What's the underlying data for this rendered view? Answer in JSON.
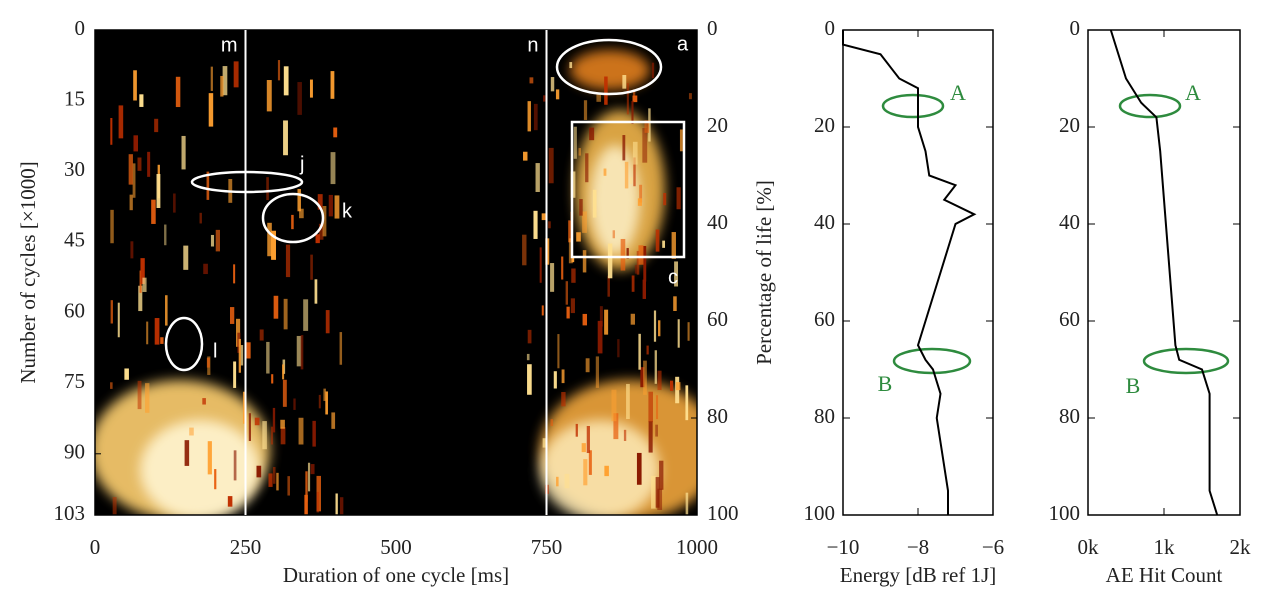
{
  "chart_data": [
    {
      "type": "heatmap",
      "xlabel": "Duration of one cycle [ms]",
      "ylabel": "Number of cycles [×1000]",
      "y2label": "Percentage of life [%]",
      "xlim": [
        0,
        1000
      ],
      "xticks": [
        0,
        250,
        500,
        750,
        1000
      ],
      "ylim": [
        0,
        103
      ],
      "yticks": [
        0,
        15,
        30,
        45,
        60,
        75,
        90,
        103
      ],
      "y2lim": [
        0,
        100
      ],
      "y2ticks": [
        0,
        20,
        40,
        60,
        80,
        100
      ],
      "vlines": [
        {
          "value": 250,
          "label": "m"
        },
        {
          "value": 750,
          "label": "n"
        }
      ],
      "annotations": [
        "a",
        "c",
        "j",
        "k",
        "l"
      ]
    },
    {
      "type": "line",
      "xlabel": "Energy [dB ref 1J]",
      "ylabel": "Percentage of life [%]",
      "xlim": [
        -10,
        -6
      ],
      "xticks": [
        {
          "value": -10,
          "label": "−10"
        },
        {
          "value": -8,
          "label": "−8"
        },
        {
          "value": -6,
          "label": "−6"
        }
      ],
      "ylim": [
        0,
        100
      ],
      "yticks": [
        0,
        20,
        40,
        60,
        80,
        100
      ],
      "x": [
        0,
        3,
        5,
        8,
        10,
        12,
        15,
        18,
        20,
        25,
        30,
        32,
        35,
        38,
        40,
        45,
        50,
        55,
        60,
        65,
        68,
        70,
        75,
        80,
        85,
        90,
        95,
        100
      ],
      "values": [
        -10,
        -10,
        -9,
        -8.7,
        -8.5,
        -8,
        -8,
        -8,
        -8,
        -7.8,
        -7.7,
        -7,
        -7.3,
        -6.5,
        -7,
        -7.2,
        -7.4,
        -7.6,
        -7.8,
        -8,
        -7.8,
        -7.6,
        -7.4,
        -7.5,
        -7.4,
        -7.3,
        -7.2,
        -7.2
      ],
      "color": "#000000",
      "annotations": [
        "A",
        "B"
      ]
    },
    {
      "type": "line",
      "xlabel": "AE Hit Count",
      "xlim": [
        0,
        2000
      ],
      "xticks": [
        {
          "value": 0,
          "label": "0k"
        },
        {
          "value": 1000,
          "label": "1k"
        },
        {
          "value": 2000,
          "label": "2k"
        }
      ],
      "ylim": [
        0,
        100
      ],
      "yticks": [
        0,
        20,
        40,
        60,
        80,
        100
      ],
      "x": [
        0,
        5,
        10,
        15,
        18,
        25,
        35,
        45,
        55,
        65,
        68,
        70,
        75,
        85,
        95,
        100
      ],
      "values": [
        300,
        400,
        500,
        700,
        900,
        950,
        1000,
        1050,
        1100,
        1150,
        1200,
        1500,
        1600,
        1600,
        1600,
        1700
      ],
      "color": "#000000",
      "annotations": [
        "A",
        "B"
      ]
    }
  ]
}
